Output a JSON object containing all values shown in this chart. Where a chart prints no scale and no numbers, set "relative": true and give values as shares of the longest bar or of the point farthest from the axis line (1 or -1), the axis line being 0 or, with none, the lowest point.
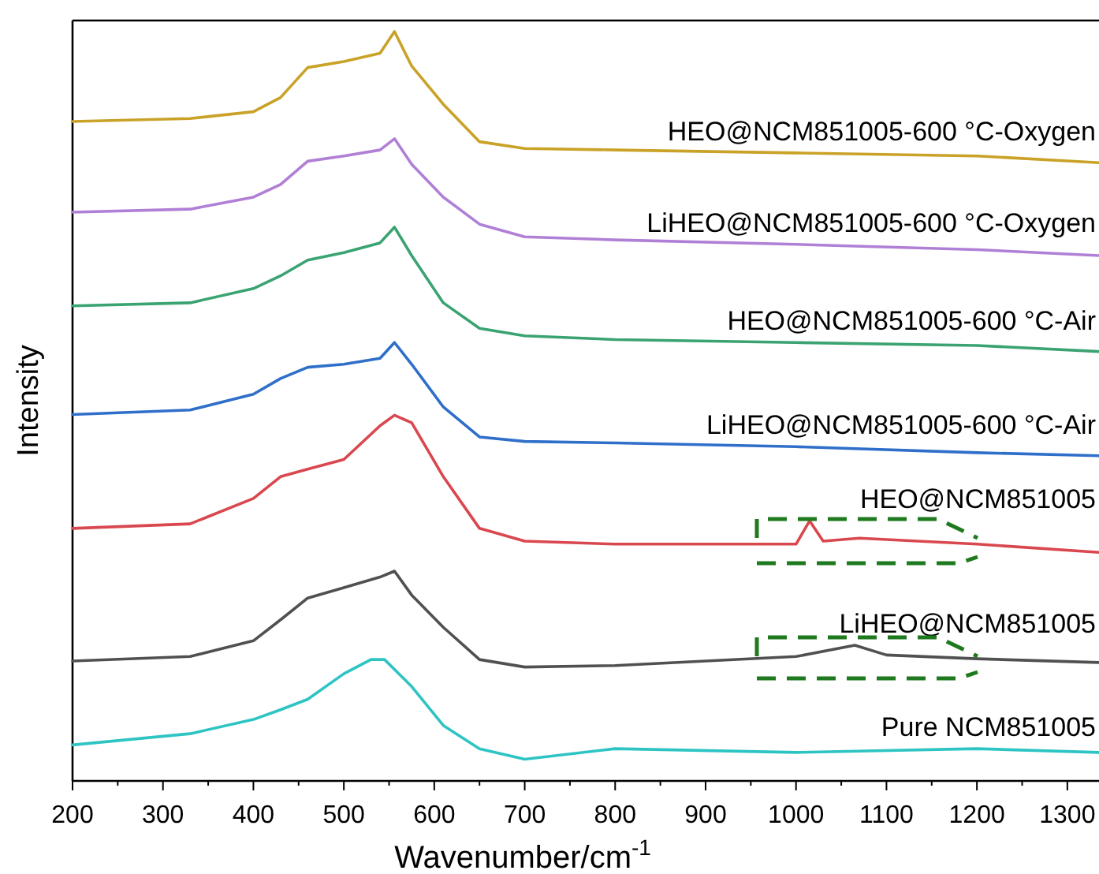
{
  "chart_data": {
    "type": "line",
    "relative": true,
    "xlabel": "Wavenumber/cm$^{-1}$",
    "ylabel": "Intensity",
    "xlim": [
      200,
      1335
    ],
    "xticks": [
      200,
      300,
      400,
      500,
      600,
      700,
      800,
      900,
      1000,
      1100,
      1200,
      1300
    ],
    "tick_labels": "x",
    "grid": false,
    "marker": "none",
    "line_style": "solid",
    "series": [
      {
        "name": "HEO@NCM851005-600 °C-Oxygen",
        "color": "#c9a227",
        "x": [
          200,
          330,
          400,
          430,
          460,
          500,
          540,
          556,
          575,
          610,
          650,
          700,
          800,
          1000,
          1200,
          1335
        ],
        "values": [
          0.88,
          0.884,
          0.893,
          0.912,
          0.952,
          0.96,
          0.971,
          1.0,
          0.954,
          0.903,
          0.853,
          0.844,
          0.842,
          0.838,
          0.834,
          0.825
        ]
      },
      {
        "name": "LiHEO@NCM851005-600 °C-Oxygen",
        "color": "#b07fd6",
        "x": [
          200,
          330,
          400,
          430,
          460,
          500,
          540,
          556,
          575,
          610,
          650,
          700,
          800,
          1000,
          1200,
          1335
        ],
        "values": [
          0.759,
          0.763,
          0.779,
          0.796,
          0.827,
          0.834,
          0.842,
          0.857,
          0.823,
          0.779,
          0.743,
          0.726,
          0.722,
          0.716,
          0.709,
          0.701
        ]
      },
      {
        "name": "HEO@NCM851005-600 °C-Air",
        "color": "#3aa371",
        "x": [
          200,
          330,
          400,
          430,
          460,
          500,
          540,
          556,
          575,
          610,
          650,
          700,
          800,
          1000,
          1200,
          1335
        ],
        "values": [
          0.634,
          0.638,
          0.657,
          0.674,
          0.695,
          0.705,
          0.718,
          0.739,
          0.701,
          0.638,
          0.604,
          0.594,
          0.589,
          0.585,
          0.581,
          0.573
        ]
      },
      {
        "name": "LiHEO@NCM851005-600 °C-Air",
        "color": "#2f6fc9",
        "x": [
          200,
          330,
          400,
          430,
          460,
          500,
          540,
          556,
          575,
          610,
          650,
          700,
          800,
          1000,
          1200,
          1335
        ],
        "values": [
          0.489,
          0.495,
          0.516,
          0.537,
          0.552,
          0.556,
          0.564,
          0.585,
          0.556,
          0.499,
          0.459,
          0.453,
          0.451,
          0.446,
          0.438,
          0.434
        ]
      },
      {
        "name": "HEO@NCM851005",
        "color": "#d9474f",
        "x": [
          200,
          330,
          400,
          430,
          460,
          500,
          540,
          556,
          575,
          610,
          650,
          700,
          800,
          1000,
          1015,
          1030,
          1070,
          1200,
          1335
        ],
        "values": [
          0.337,
          0.343,
          0.377,
          0.406,
          0.416,
          0.429,
          0.474,
          0.488,
          0.478,
          0.406,
          0.337,
          0.32,
          0.316,
          0.316,
          0.347,
          0.32,
          0.324,
          0.316,
          0.305
        ]
      },
      {
        "name": "LiHEO@NCM851005",
        "color": "#505050",
        "x": [
          200,
          330,
          400,
          430,
          460,
          500,
          540,
          556,
          575,
          610,
          650,
          700,
          800,
          1000,
          1065,
          1100,
          1200,
          1335
        ],
        "values": [
          0.16,
          0.166,
          0.187,
          0.215,
          0.244,
          0.258,
          0.272,
          0.28,
          0.248,
          0.205,
          0.162,
          0.152,
          0.154,
          0.166,
          0.181,
          0.168,
          0.163,
          0.158
        ]
      },
      {
        "name": "Pure NCM851005",
        "color": "#2ec4c4",
        "x": [
          200,
          330,
          400,
          430,
          460,
          500,
          530,
          545,
          575,
          610,
          650,
          700,
          800,
          1000,
          1200,
          1335
        ],
        "values": [
          0.048,
          0.063,
          0.082,
          0.095,
          0.109,
          0.143,
          0.162,
          0.162,
          0.126,
          0.074,
          0.043,
          0.029,
          0.043,
          0.038,
          0.043,
          0.038
        ]
      }
    ]
  }
}
